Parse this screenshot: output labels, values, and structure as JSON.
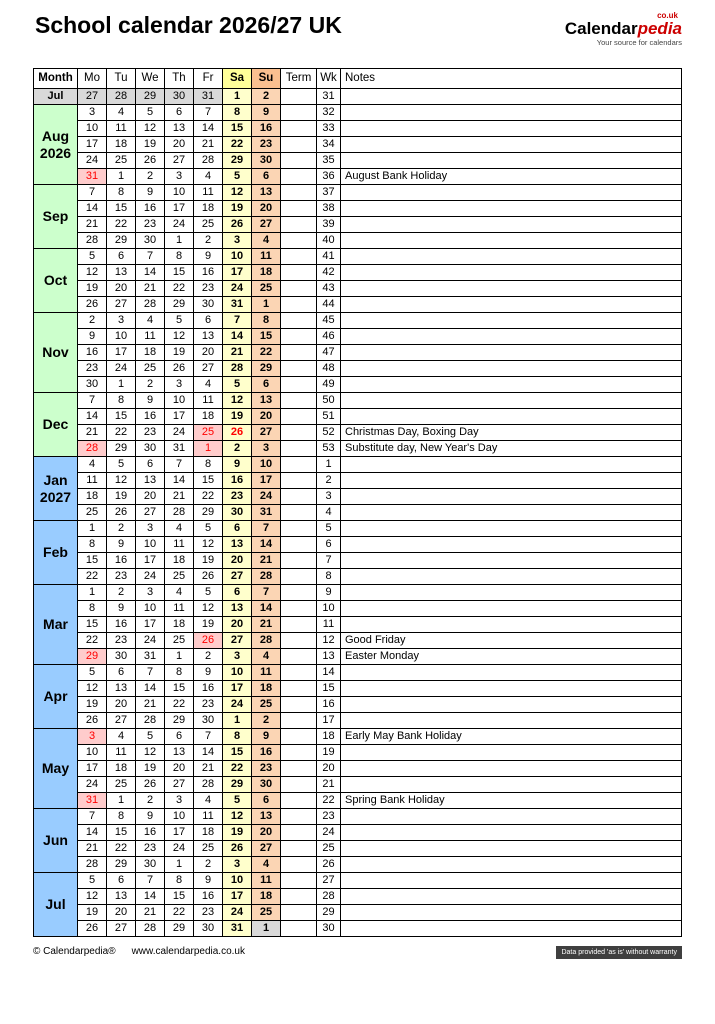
{
  "page": {
    "title": "School calendar 2026/27 UK",
    "logo": {
      "tld": "co.uk",
      "brand_calendar": "Calendar",
      "brand_pedia": "pedia",
      "tagline": "Your source for calendars"
    },
    "footer": {
      "copyright": "© Calendarpedia®",
      "url": "www.calendarpedia.co.uk",
      "disclaimer": "Data provided 'as is' without warranty"
    }
  },
  "colors": {
    "year_2026_month": "#ccffcc",
    "year_2027_month": "#99ccff",
    "outside_range": "#d9d9d9",
    "saturday": "#ffffcc",
    "sunday": "#fbd5b4",
    "holiday_bg": "#ffcccc",
    "holiday_text": "#ff0000",
    "brand_red": "#cc0000"
  },
  "table": {
    "headers": [
      "Month",
      "Mo",
      "Tu",
      "We",
      "Th",
      "Fr",
      "Sa",
      "Su",
      "Term",
      "Wk",
      "Notes"
    ],
    "months": [
      {
        "label": "Jul",
        "year": "",
        "color": "#d9d9d9",
        "small": true,
        "weeks": [
          {
            "wk": 31,
            "days": [
              27,
              28,
              29,
              30,
              31,
              1,
              2
            ],
            "styles": [
              "o",
              "o",
              "o",
              "o",
              "o",
              "",
              ""
            ],
            "note": ""
          }
        ]
      },
      {
        "label": "Aug",
        "year": "2026",
        "color": "#ccffcc",
        "weeks": [
          {
            "wk": 32,
            "days": [
              3,
              4,
              5,
              6,
              7,
              8,
              9
            ],
            "note": ""
          },
          {
            "wk": 33,
            "days": [
              10,
              11,
              12,
              13,
              14,
              15,
              16
            ],
            "note": ""
          },
          {
            "wk": 34,
            "days": [
              17,
              18,
              19,
              20,
              21,
              22,
              23
            ],
            "note": ""
          },
          {
            "wk": 35,
            "days": [
              24,
              25,
              26,
              27,
              28,
              29,
              30
            ],
            "note": ""
          },
          {
            "wk": 36,
            "days": [
              31,
              1,
              2,
              3,
              4,
              5,
              6
            ],
            "styles": [
              "h",
              "",
              "",
              "",
              "",
              "",
              ""
            ],
            "note": "August Bank Holiday"
          }
        ]
      },
      {
        "label": "Sep",
        "year": "",
        "color": "#ccffcc",
        "weeks": [
          {
            "wk": 37,
            "days": [
              7,
              8,
              9,
              10,
              11,
              12,
              13
            ],
            "note": ""
          },
          {
            "wk": 38,
            "days": [
              14,
              15,
              16,
              17,
              18,
              19,
              20
            ],
            "note": ""
          },
          {
            "wk": 39,
            "days": [
              21,
              22,
              23,
              24,
              25,
              26,
              27
            ],
            "note": ""
          },
          {
            "wk": 40,
            "days": [
              28,
              29,
              30,
              1,
              2,
              3,
              4
            ],
            "note": ""
          }
        ]
      },
      {
        "label": "Oct",
        "year": "",
        "color": "#ccffcc",
        "weeks": [
          {
            "wk": 41,
            "days": [
              5,
              6,
              7,
              8,
              9,
              10,
              11
            ],
            "note": ""
          },
          {
            "wk": 42,
            "days": [
              12,
              13,
              14,
              15,
              16,
              17,
              18
            ],
            "note": ""
          },
          {
            "wk": 43,
            "days": [
              19,
              20,
              21,
              22,
              23,
              24,
              25
            ],
            "note": ""
          },
          {
            "wk": 44,
            "days": [
              26,
              27,
              28,
              29,
              30,
              31,
              1
            ],
            "note": ""
          }
        ]
      },
      {
        "label": "Nov",
        "year": "",
        "color": "#ccffcc",
        "weeks": [
          {
            "wk": 45,
            "days": [
              2,
              3,
              4,
              5,
              6,
              7,
              8
            ],
            "note": ""
          },
          {
            "wk": 46,
            "days": [
              9,
              10,
              11,
              12,
              13,
              14,
              15
            ],
            "note": ""
          },
          {
            "wk": 47,
            "days": [
              16,
              17,
              18,
              19,
              20,
              21,
              22
            ],
            "note": ""
          },
          {
            "wk": 48,
            "days": [
              23,
              24,
              25,
              26,
              27,
              28,
              29
            ],
            "note": ""
          },
          {
            "wk": 49,
            "days": [
              30,
              1,
              2,
              3,
              4,
              5,
              6
            ],
            "note": ""
          }
        ]
      },
      {
        "label": "Dec",
        "year": "",
        "color": "#ccffcc",
        "weeks": [
          {
            "wk": 50,
            "days": [
              7,
              8,
              9,
              10,
              11,
              12,
              13
            ],
            "note": ""
          },
          {
            "wk": 51,
            "days": [
              14,
              15,
              16,
              17,
              18,
              19,
              20
            ],
            "note": ""
          },
          {
            "wk": 52,
            "days": [
              21,
              22,
              23,
              24,
              25,
              26,
              27
            ],
            "styles": [
              "",
              "",
              "",
              "",
              "h",
              "r",
              ""
            ],
            "note": "Christmas Day, Boxing Day"
          },
          {
            "wk": 53,
            "days": [
              28,
              29,
              30,
              31,
              1,
              2,
              3
            ],
            "styles": [
              "h",
              "",
              "",
              "",
              "h",
              "",
              ""
            ],
            "note": "Substitute day, New Year's Day"
          }
        ]
      },
      {
        "label": "Jan",
        "year": "2027",
        "color": "#99ccff",
        "weeks": [
          {
            "wk": 1,
            "days": [
              4,
              5,
              6,
              7,
              8,
              9,
              10
            ],
            "note": ""
          },
          {
            "wk": 2,
            "days": [
              11,
              12,
              13,
              14,
              15,
              16,
              17
            ],
            "note": ""
          },
          {
            "wk": 3,
            "days": [
              18,
              19,
              20,
              21,
              22,
              23,
              24
            ],
            "note": ""
          },
          {
            "wk": 4,
            "days": [
              25,
              26,
              27,
              28,
              29,
              30,
              31
            ],
            "note": ""
          }
        ]
      },
      {
        "label": "Feb",
        "year": "",
        "color": "#99ccff",
        "weeks": [
          {
            "wk": 5,
            "days": [
              1,
              2,
              3,
              4,
              5,
              6,
              7
            ],
            "note": ""
          },
          {
            "wk": 6,
            "days": [
              8,
              9,
              10,
              11,
              12,
              13,
              14
            ],
            "note": ""
          },
          {
            "wk": 7,
            "days": [
              15,
              16,
              17,
              18,
              19,
              20,
              21
            ],
            "note": ""
          },
          {
            "wk": 8,
            "days": [
              22,
              23,
              24,
              25,
              26,
              27,
              28
            ],
            "note": ""
          }
        ]
      },
      {
        "label": "Mar",
        "year": "",
        "color": "#99ccff",
        "weeks": [
          {
            "wk": 9,
            "days": [
              1,
              2,
              3,
              4,
              5,
              6,
              7
            ],
            "note": ""
          },
          {
            "wk": 10,
            "days": [
              8,
              9,
              10,
              11,
              12,
              13,
              14
            ],
            "note": ""
          },
          {
            "wk": 11,
            "days": [
              15,
              16,
              17,
              18,
              19,
              20,
              21
            ],
            "note": ""
          },
          {
            "wk": 12,
            "days": [
              22,
              23,
              24,
              25,
              26,
              27,
              28
            ],
            "styles": [
              "",
              "",
              "",
              "",
              "h",
              "",
              ""
            ],
            "note": "Good Friday"
          },
          {
            "wk": 13,
            "days": [
              29,
              30,
              31,
              1,
              2,
              3,
              4
            ],
            "styles": [
              "h",
              "",
              "",
              "",
              "",
              "",
              ""
            ],
            "note": "Easter Monday"
          }
        ]
      },
      {
        "label": "Apr",
        "year": "",
        "color": "#99ccff",
        "weeks": [
          {
            "wk": 14,
            "days": [
              5,
              6,
              7,
              8,
              9,
              10,
              11
            ],
            "note": ""
          },
          {
            "wk": 15,
            "days": [
              12,
              13,
              14,
              15,
              16,
              17,
              18
            ],
            "note": ""
          },
          {
            "wk": 16,
            "days": [
              19,
              20,
              21,
              22,
              23,
              24,
              25
            ],
            "note": ""
          },
          {
            "wk": 17,
            "days": [
              26,
              27,
              28,
              29,
              30,
              1,
              2
            ],
            "note": ""
          }
        ]
      },
      {
        "label": "May",
        "year": "",
        "color": "#99ccff",
        "weeks": [
          {
            "wk": 18,
            "days": [
              3,
              4,
              5,
              6,
              7,
              8,
              9
            ],
            "styles": [
              "h",
              "",
              "",
              "",
              "",
              "",
              ""
            ],
            "note": "Early May Bank Holiday"
          },
          {
            "wk": 19,
            "days": [
              10,
              11,
              12,
              13,
              14,
              15,
              16
            ],
            "note": ""
          },
          {
            "wk": 20,
            "days": [
              17,
              18,
              19,
              20,
              21,
              22,
              23
            ],
            "note": ""
          },
          {
            "wk": 21,
            "days": [
              24,
              25,
              26,
              27,
              28,
              29,
              30
            ],
            "note": ""
          },
          {
            "wk": 22,
            "days": [
              31,
              1,
              2,
              3,
              4,
              5,
              6
            ],
            "styles": [
              "h",
              "",
              "",
              "",
              "",
              "",
              ""
            ],
            "note": "Spring Bank Holiday"
          }
        ]
      },
      {
        "label": "Jun",
        "year": "",
        "color": "#99ccff",
        "weeks": [
          {
            "wk": 23,
            "days": [
              7,
              8,
              9,
              10,
              11,
              12,
              13
            ],
            "note": ""
          },
          {
            "wk": 24,
            "days": [
              14,
              15,
              16,
              17,
              18,
              19,
              20
            ],
            "note": ""
          },
          {
            "wk": 25,
            "days": [
              21,
              22,
              23,
              24,
              25,
              26,
              27
            ],
            "note": ""
          },
          {
            "wk": 26,
            "days": [
              28,
              29,
              30,
              1,
              2,
              3,
              4
            ],
            "note": ""
          }
        ]
      },
      {
        "label": "Jul",
        "year": "",
        "color": "#99ccff",
        "weeks": [
          {
            "wk": 27,
            "days": [
              5,
              6,
              7,
              8,
              9,
              10,
              11
            ],
            "note": ""
          },
          {
            "wk": 28,
            "days": [
              12,
              13,
              14,
              15,
              16,
              17,
              18
            ],
            "note": ""
          },
          {
            "wk": 29,
            "days": [
              19,
              20,
              21,
              22,
              23,
              24,
              25
            ],
            "note": ""
          },
          {
            "wk": 30,
            "days": [
              26,
              27,
              28,
              29,
              30,
              31,
              1
            ],
            "styles": [
              "",
              "",
              "",
              "",
              "",
              "",
              "o"
            ],
            "note": ""
          }
        ]
      }
    ]
  }
}
